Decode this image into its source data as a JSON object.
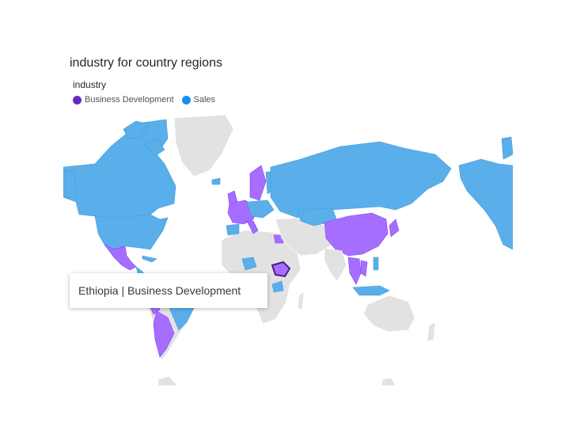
{
  "title": "industry for country regions",
  "legend": {
    "title": "industry",
    "items": [
      {
        "label": "Business Development",
        "color": "#6929c4"
      },
      {
        "label": "Sales",
        "color": "#1192e8"
      }
    ]
  },
  "tooltip": {
    "text": "Ethiopia | Business Development"
  },
  "map_data": {
    "category_colors": {
      "Business Development": "#a56eff",
      "Sales": "#5aafea",
      "none": "#e2e2e2"
    },
    "highlighted_region": "Ethiopia"
  }
}
